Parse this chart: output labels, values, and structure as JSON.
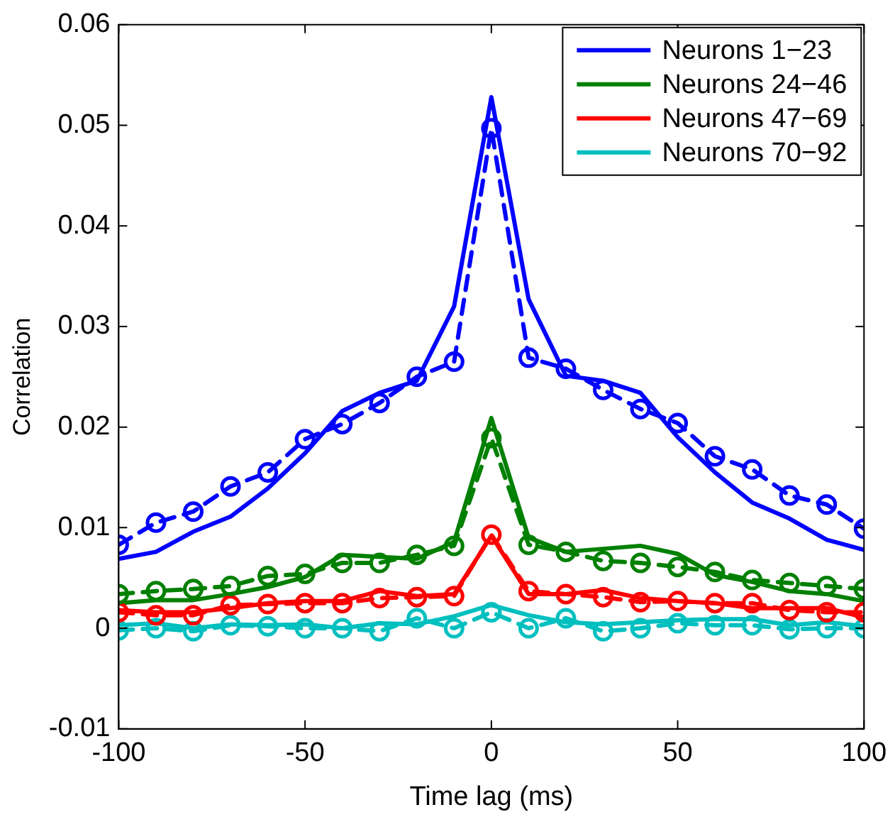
{
  "chart_data": {
    "type": "line",
    "xlabel": "Time lag (ms)",
    "ylabel": "Correlation",
    "x": [
      -100,
      -90,
      -80,
      -70,
      -60,
      -50,
      -40,
      -30,
      -20,
      -10,
      0,
      10,
      20,
      30,
      40,
      50,
      60,
      70,
      80,
      90,
      100
    ],
    "xlim": [
      -100,
      100
    ],
    "xticks": [
      -100,
      -50,
      0,
      50,
      100
    ],
    "ylim": [
      -0.01,
      0.06
    ],
    "yticks": [
      -0.01,
      0,
      0.01,
      0.02,
      0.03,
      0.04,
      0.05,
      0.06
    ],
    "grid": false,
    "legend": "top right",
    "series": [
      {
        "name": "Neurons 1−23",
        "color": "#0000ff",
        "marker": "none",
        "line_style": "solid",
        "values": [
          0.0069,
          0.0076,
          0.0096,
          0.0111,
          0.0139,
          0.0174,
          0.0216,
          0.0234,
          0.0246,
          0.032,
          0.0528,
          0.0327,
          0.0251,
          0.0246,
          0.0234,
          0.019,
          0.0155,
          0.0125,
          0.0109,
          0.0088,
          0.0078
        ]
      },
      {
        "name": "Neurons 24−46",
        "color": "#008000",
        "marker": "none",
        "line_style": "solid",
        "values": [
          0.0025,
          0.0028,
          0.0028,
          0.0034,
          0.0041,
          0.0051,
          0.0073,
          0.0071,
          0.0069,
          0.0086,
          0.0209,
          0.009,
          0.0076,
          0.0079,
          0.0082,
          0.0074,
          0.0053,
          0.0046,
          0.0037,
          0.0034,
          0.0027
        ]
      },
      {
        "name": "Neurons 47−69",
        "color": "#ff0000",
        "marker": "none",
        "line_style": "solid",
        "values": [
          0.0018,
          0.0016,
          0.0016,
          0.002,
          0.0025,
          0.0027,
          0.0027,
          0.0037,
          0.0032,
          0.0034,
          0.0092,
          0.0034,
          0.0034,
          0.0038,
          0.003,
          0.0027,
          0.0025,
          0.002,
          0.002,
          0.002,
          0.0011
        ]
      },
      {
        "name": "Neurons 70−92",
        "color": "#00bfbf",
        "marker": "none",
        "line_style": "solid",
        "values": [
          0.0003,
          0.0005,
          0,
          0.0004,
          0.0003,
          0.0004,
          0,
          0.0005,
          0.0004,
          0.0012,
          0.0023,
          0.0013,
          0.0006,
          0.0004,
          0.0006,
          0.0008,
          0.0009,
          0.0009,
          0.0003,
          0.0006,
          0.0002
        ]
      },
      {
        "color": "#0000ff",
        "marker": "circle",
        "line_style": "dashed",
        "values": [
          0.0083,
          0.0105,
          0.0116,
          0.0141,
          0.0155,
          0.0188,
          0.0203,
          0.0224,
          0.025,
          0.0265,
          0.0497,
          0.0269,
          0.0258,
          0.0237,
          0.0218,
          0.0204,
          0.0171,
          0.0158,
          0.0132,
          0.0123,
          0.0099
        ]
      },
      {
        "color": "#008000",
        "marker": "circle",
        "line_style": "dashed",
        "values": [
          0.0034,
          0.0037,
          0.0039,
          0.0042,
          0.0052,
          0.0054,
          0.0065,
          0.0065,
          0.0073,
          0.0082,
          0.0189,
          0.0083,
          0.0076,
          0.0067,
          0.0065,
          0.0061,
          0.0056,
          0.0048,
          0.0045,
          0.0042,
          0.0039
        ]
      },
      {
        "color": "#ff0000",
        "marker": "circle",
        "line_style": "dashed",
        "values": [
          0.0016,
          0.0013,
          0.0013,
          0.0023,
          0.0024,
          0.0025,
          0.0025,
          0.003,
          0.0031,
          0.0032,
          0.0093,
          0.0037,
          0.0034,
          0.0031,
          0.0026,
          0.0027,
          0.0025,
          0.0025,
          0.0018,
          0.0016,
          0.0016
        ]
      },
      {
        "color": "#00bfbf",
        "marker": "circle",
        "line_style": "dashed",
        "values": [
          -0.0002,
          0,
          -0.0003,
          0.0003,
          0.0002,
          0,
          0,
          -0.0003,
          0.001,
          0,
          0.0016,
          0,
          0.001,
          -0.0003,
          0,
          0.0005,
          0.0003,
          0.0003,
          -0.0001,
          0,
          0
        ]
      }
    ]
  }
}
